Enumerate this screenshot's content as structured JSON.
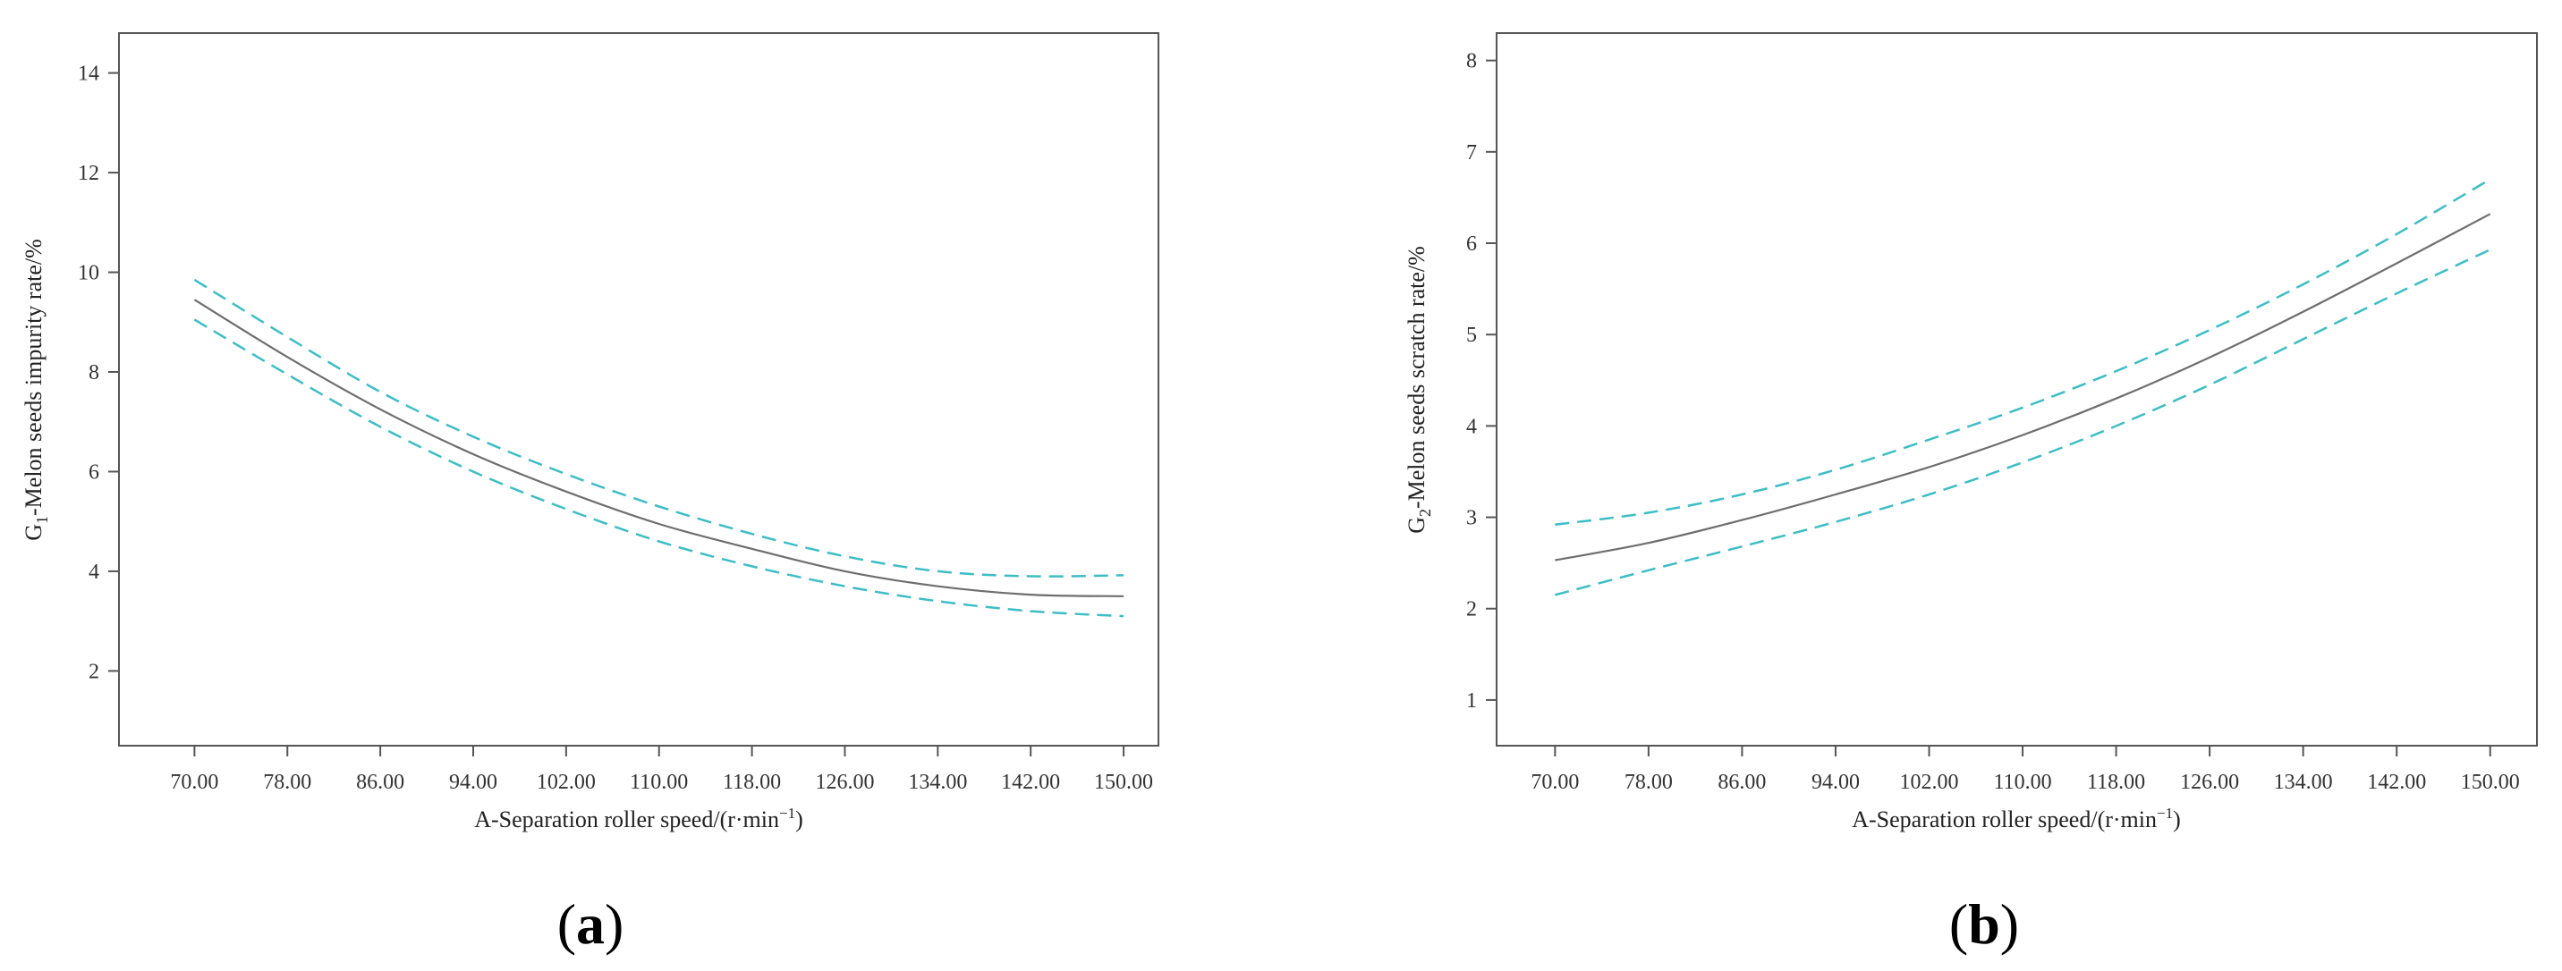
{
  "chart_data": [
    {
      "type": "line",
      "panel": "a",
      "panel_label": "a",
      "xlabel": "A-Separation roller speed/(r·min",
      "xlabel_sup": "−1",
      "xlabel_end": ")",
      "ylabel_pre": "G",
      "ylabel_sub": "1",
      "ylabel_post": "-Melon seeds impurity rate/%",
      "xlim": [
        63.5,
        153
      ],
      "ylim": [
        0.5,
        14.8
      ],
      "x_ticks": [
        70,
        78,
        86,
        94,
        102,
        110,
        118,
        126,
        134,
        142,
        150
      ],
      "x_tick_labels": [
        "70.00",
        "78.00",
        "86.00",
        "94.00",
        "102.00",
        "110.00",
        "118.00",
        "126.00",
        "134.00",
        "142.00",
        "150.00"
      ],
      "y_ticks": [
        2,
        4,
        6,
        8,
        10,
        12,
        14
      ],
      "y_tick_labels": [
        "2",
        "4",
        "6",
        "8",
        "10",
        "12",
        "14"
      ],
      "series": [
        {
          "name": "Upper confidence bound",
          "style": "dashed",
          "color": "#3dbdc6",
          "x": [
            70,
            78,
            86,
            94,
            102,
            110,
            118,
            126,
            134,
            142,
            150
          ],
          "y": [
            9.85,
            8.7,
            7.6,
            6.7,
            5.95,
            5.3,
            4.75,
            4.3,
            4.0,
            3.9,
            3.92
          ]
        },
        {
          "name": "Predicted",
          "style": "solid",
          "color": "#6e6e6e",
          "x": [
            70,
            78,
            86,
            94,
            102,
            110,
            118,
            126,
            134,
            142,
            150
          ],
          "y": [
            9.45,
            8.3,
            7.25,
            6.35,
            5.6,
            4.95,
            4.45,
            4.0,
            3.7,
            3.53,
            3.5
          ]
        },
        {
          "name": "Lower confidence bound",
          "style": "dashed",
          "color": "#3dbdc6",
          "x": [
            70,
            78,
            86,
            94,
            102,
            110,
            118,
            126,
            134,
            142,
            150
          ],
          "y": [
            9.05,
            7.95,
            6.9,
            6.0,
            5.25,
            4.6,
            4.1,
            3.7,
            3.4,
            3.2,
            3.1
          ]
        }
      ]
    },
    {
      "type": "line",
      "panel": "b",
      "panel_label": "b",
      "xlabel": "A-Separation roller speed/(r·min",
      "xlabel_sup": "−1",
      "xlabel_end": ")",
      "ylabel_pre": "G",
      "ylabel_sub": "2",
      "ylabel_post": "-Melon seeds scratch rate/%",
      "xlim": [
        65,
        154
      ],
      "ylim": [
        0.5,
        8.3
      ],
      "x_ticks": [
        70,
        78,
        86,
        94,
        102,
        110,
        118,
        126,
        134,
        142,
        150
      ],
      "x_tick_labels": [
        "70.00",
        "78.00",
        "86.00",
        "94.00",
        "102.00",
        "110.00",
        "118.00",
        "126.00",
        "134.00",
        "142.00",
        "150.00"
      ],
      "y_ticks": [
        1,
        2,
        3,
        4,
        5,
        6,
        7,
        8
      ],
      "y_tick_labels": [
        "1",
        "2",
        "3",
        "4",
        "5",
        "6",
        "7",
        "8"
      ],
      "series": [
        {
          "name": "Upper confidence bound",
          "style": "dashed",
          "color": "#3dbdc6",
          "x": [
            70,
            78,
            86,
            94,
            102,
            110,
            118,
            126,
            134,
            142,
            150
          ],
          "y": [
            2.92,
            3.05,
            3.25,
            3.52,
            3.85,
            4.2,
            4.6,
            5.05,
            5.55,
            6.1,
            6.7
          ]
        },
        {
          "name": "Predicted",
          "style": "solid",
          "color": "#6e6e6e",
          "x": [
            70,
            78,
            86,
            94,
            102,
            110,
            118,
            126,
            134,
            142,
            150
          ],
          "y": [
            2.53,
            2.72,
            2.97,
            3.25,
            3.55,
            3.9,
            4.3,
            4.75,
            5.25,
            5.78,
            6.32
          ]
        },
        {
          "name": "Lower confidence bound",
          "style": "dashed",
          "color": "#3dbdc6",
          "x": [
            70,
            78,
            86,
            94,
            102,
            110,
            118,
            126,
            134,
            142,
            150
          ],
          "y": [
            2.15,
            2.42,
            2.68,
            2.95,
            3.25,
            3.6,
            4.0,
            4.45,
            4.95,
            5.45,
            5.93
          ]
        }
      ]
    }
  ]
}
